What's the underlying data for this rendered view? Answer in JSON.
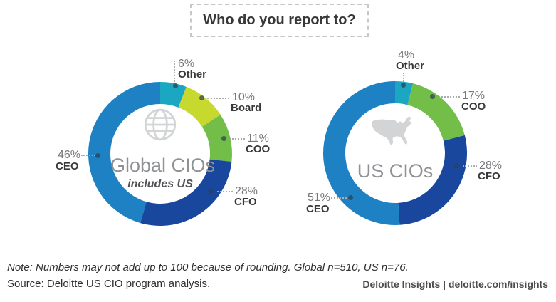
{
  "title": "Who do you report to?",
  "footer": {
    "note": "Note: Numbers may not add up to 100 because of rounding. Global n=510, US n=76.",
    "source": "Source: Deloitte US CIO program analysis.",
    "brand": "Deloitte Insights | deloitte.com/insights"
  },
  "colors": {
    "ceo": "#1D81C4",
    "cfo": "#1A479E",
    "coo": "#72BE48",
    "board": "#C7D92F",
    "other": "#1BA6C1"
  },
  "chart_data": [
    {
      "type": "donut",
      "title": "Global CIOs",
      "subtitle": "includes US",
      "icon": "globe-icon",
      "start_angle_deg": 0,
      "direction": "clockwise",
      "segments": [
        {
          "label": "Other",
          "pct": "6%",
          "value": 6,
          "color_key": "other"
        },
        {
          "label": "Board",
          "pct": "10%",
          "value": 10,
          "color_key": "board"
        },
        {
          "label": "COO",
          "pct": "11%",
          "value": 11,
          "color_key": "coo"
        },
        {
          "label": "CFO",
          "pct": "28%",
          "value": 28,
          "color_key": "cfo"
        },
        {
          "label": "CEO",
          "pct": "46%",
          "value": 46,
          "color_key": "ceo"
        }
      ]
    },
    {
      "type": "donut",
      "title": "US CIOs",
      "subtitle": "",
      "icon": "us-map-icon",
      "start_angle_deg": 0,
      "direction": "clockwise",
      "segments": [
        {
          "label": "Other",
          "pct": "4%",
          "value": 4,
          "color_key": "other"
        },
        {
          "label": "COO",
          "pct": "17%",
          "value": 17,
          "color_key": "coo"
        },
        {
          "label": "CFO",
          "pct": "28%",
          "value": 28,
          "color_key": "cfo"
        },
        {
          "label": "CEO",
          "pct": "51%",
          "value": 51,
          "color_key": "ceo"
        }
      ]
    }
  ]
}
